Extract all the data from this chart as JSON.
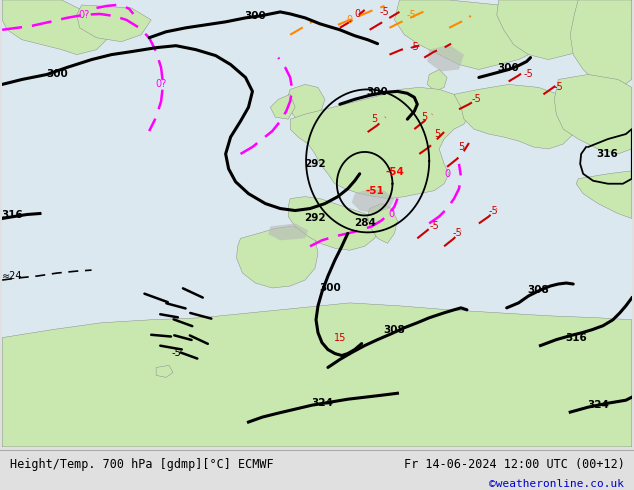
{
  "title_left": "Height/Temp. 700 hPa [gdmp][°C] ECMWF",
  "title_right": "Fr 14-06-2024 12:00 UTC (00+12)",
  "credit": "©weatheronline.co.uk",
  "bg_color": "#e0e0e0",
  "land_color": "#c8e8b0",
  "sea_color": "#dce8f0",
  "mountain_color": "#b8b8b8",
  "footer_text_color": "#000000",
  "credit_color": "#0000cc",
  "figsize": [
    6.34,
    4.9
  ],
  "dpi": 100
}
